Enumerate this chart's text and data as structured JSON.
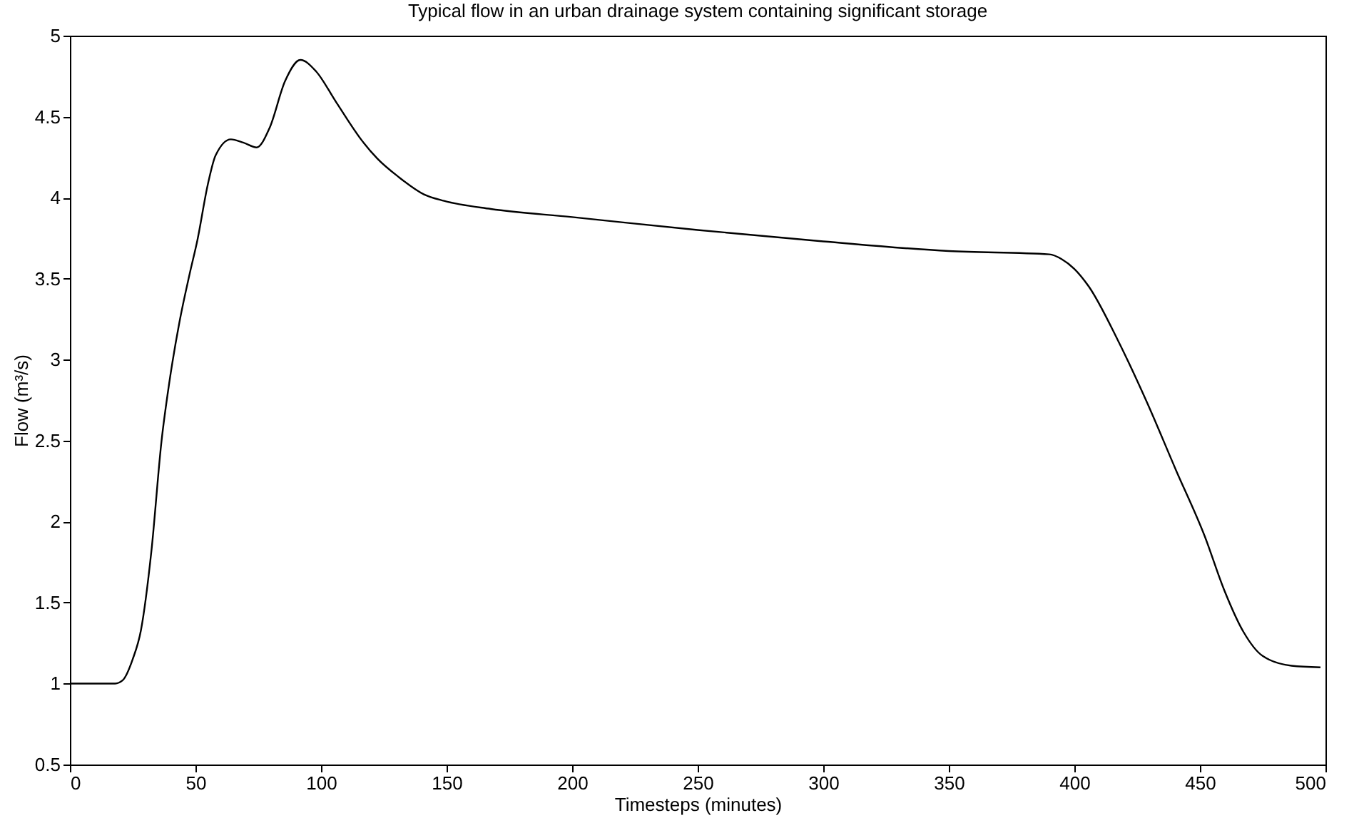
{
  "chart_data": {
    "type": "line",
    "title": "Typical flow in an urban drainage system containing significant storage",
    "xlabel": "Timesteps (minutes)",
    "ylabel": "Flow (m³/s)",
    "x": [
      0,
      10,
      18,
      21,
      25,
      28.3,
      32.4,
      36.5,
      39.5,
      43.6,
      47.7,
      50.8,
      54.9,
      58,
      64.1,
      69,
      74.4,
      79.5,
      85.7,
      91.8,
      98,
      106,
      116.4,
      122.5,
      130.7,
      141,
      149,
      167.6,
      200,
      250,
      300,
      350,
      390,
      395,
      400,
      405.8,
      417.3,
      428.8,
      440.4,
      451.9,
      459.6,
      467.3,
      475,
      486.5,
      498
    ],
    "series": [
      {
        "color": "#000000",
        "values": [
          1.0,
          1.0,
          1.0,
          1.02,
          1.15,
          1.33,
          1.81,
          2.5,
          2.85,
          3.23,
          3.53,
          3.74,
          4.08,
          4.26,
          4.36,
          4.34,
          4.31,
          4.43,
          4.72,
          4.85,
          4.78,
          4.59,
          4.35,
          4.24,
          4.13,
          4.02,
          3.98,
          3.93,
          3.88,
          3.8,
          3.73,
          3.67,
          3.65,
          3.62,
          3.56,
          3.45,
          3.12,
          2.74,
          2.32,
          1.91,
          1.58,
          1.32,
          1.17,
          1.11,
          1.1
        ]
      }
    ],
    "xlim": [
      0,
      500
    ],
    "xticks": [
      0,
      50,
      100,
      150,
      200,
      250,
      300,
      350,
      400,
      450,
      500
    ],
    "ylim": [
      0.5,
      5
    ],
    "yticks": [
      0.5,
      1,
      1.5,
      2,
      2.5,
      3,
      3.5,
      4,
      4.5,
      5
    ],
    "grid": false,
    "marker": "none",
    "line_style": "solid"
  }
}
